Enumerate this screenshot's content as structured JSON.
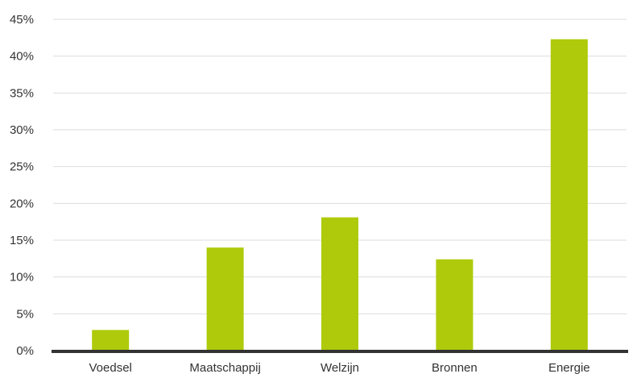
{
  "chart_data": {
    "type": "bar",
    "categories": [
      "Voedsel",
      "Maatschappij",
      "Welzijn",
      "Bronnen",
      "Energie"
    ],
    "values": [
      2.8,
      14.0,
      18.1,
      12.4,
      42.3
    ],
    "ylim": [
      0,
      45
    ],
    "yticks": [
      0,
      5,
      10,
      15,
      20,
      25,
      30,
      35,
      40,
      45
    ],
    "ytick_labels": [
      "0%",
      "5%",
      "10%",
      "15%",
      "20%",
      "25%",
      "30%",
      "35%",
      "40%",
      "45%"
    ],
    "grid": true,
    "bar_color": "#afca0b",
    "baseline_color": "#333333",
    "grid_color": "#dddddd"
  }
}
